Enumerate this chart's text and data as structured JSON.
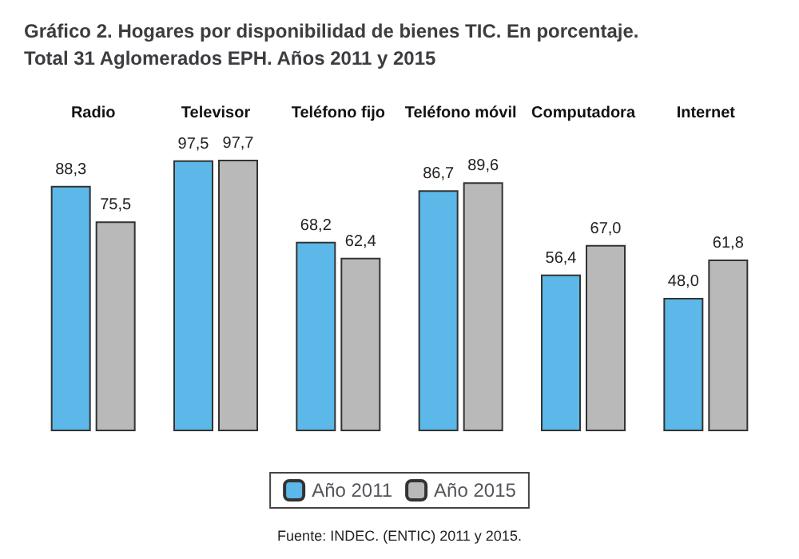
{
  "chart_data": {
    "type": "bar",
    "title": "Gráfico 2. Hogares por disponibilidad de bienes TIC. En porcentaje.\nTotal 31 Aglomerados EPH. Años 2011 y 2015",
    "categories": [
      "Radio",
      "Televisor",
      "Teléfono fijo",
      "Teléfono móvil",
      "Computadora",
      "Internet"
    ],
    "series": [
      {
        "name": "Año 2011",
        "color": "#5bb8e8",
        "values": [
          88.3,
          97.5,
          68.2,
          86.7,
          56.4,
          48.0
        ],
        "value_labels": [
          "88,3",
          "97,5",
          "68,2",
          "86,7",
          "56,4",
          "48,0"
        ]
      },
      {
        "name": "Año 2015",
        "color": "#b9b9b9",
        "values": [
          75.5,
          97.7,
          62.4,
          89.6,
          67.0,
          61.8
        ],
        "value_labels": [
          "75,5",
          "97,7",
          "62,4",
          "89,6",
          "67,0",
          "61,8"
        ]
      }
    ],
    "legend": "bottom",
    "grid": false,
    "annotations": [
      "Fuente: INDEC. (ENTIC) 2011 y 2015."
    ]
  }
}
